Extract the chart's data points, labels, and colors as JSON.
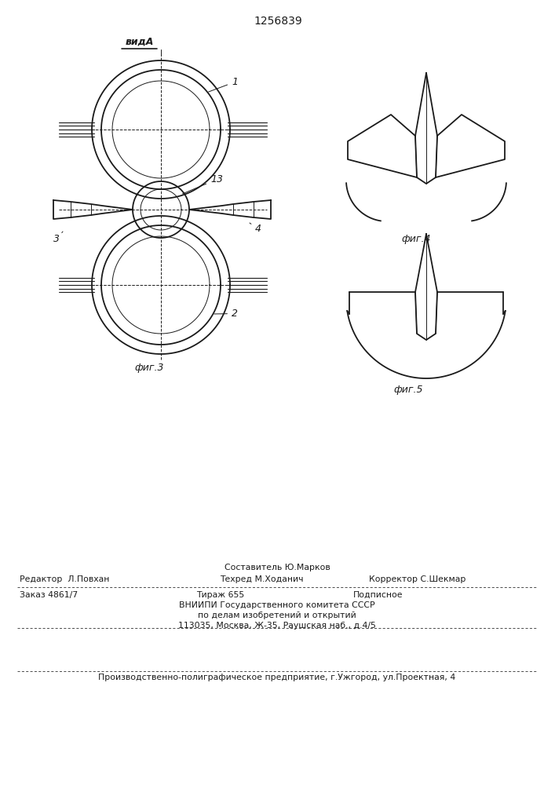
{
  "title": "1256839",
  "bg_color": "#ffffff",
  "line_color": "#1a1a1a",
  "lw": 1.3,
  "tlw": 0.7,
  "fig3_label": "фиг.3",
  "fig4_label": "фиг.4",
  "fig5_label": "фиг.5",
  "vida_label": "видA",
  "label1": "1",
  "label2": "2",
  "label3": "3",
  "label4": "4",
  "label13": "13",
  "footer_sestavitel": "Составитель Ю.Марков",
  "footer_redaktor": "Редактор  Л.Повхан",
  "footer_tehred": "Техред М.Ходанич",
  "footer_korrektor": "Корректор С.Шекмар",
  "footer_zakaz": "Заказ 4861/7",
  "footer_tirazh": "Тираж 655",
  "footer_podpisnoe": "Подписное",
  "footer_vniip1": "ВНИИПИ Государственного комитета СССР",
  "footer_vniip2": "по делам изобретений и открытий",
  "footer_vniip3": "113035, Москва, Ж-35, Раушская наб., д.4/5",
  "footer_proizv": "Производственно-полиграфическое предприятие, г.Ужгород, ул.Проектная, 4"
}
